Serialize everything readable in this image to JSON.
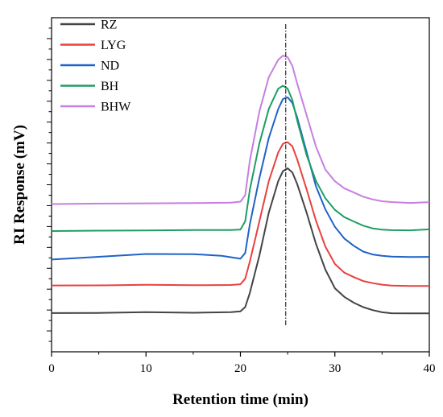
{
  "chart_data": {
    "type": "line",
    "title": "",
    "xlabel": "Retention time (min)",
    "ylabel": "RI Response (mV)",
    "xlim": [
      0,
      40
    ],
    "xticks": [
      0,
      10,
      20,
      30,
      40
    ],
    "ylim": [
      0,
      10
    ],
    "yticks_labeled": false,
    "grid": false,
    "legend": "top-left",
    "reference_line_x": 24.8,
    "series": [
      {
        "name": "RZ",
        "color": "#444444",
        "x": [
          0,
          5,
          10,
          15,
          19,
          20,
          20.5,
          21,
          22,
          23,
          24,
          24.5,
          25,
          25.5,
          26,
          27,
          28,
          29,
          30,
          31,
          32,
          33,
          34,
          35,
          36,
          38,
          40
        ],
        "y": [
          1.0,
          1.0,
          1.02,
          1.0,
          1.02,
          1.05,
          1.2,
          1.7,
          3.0,
          4.5,
          5.6,
          5.95,
          6.05,
          5.9,
          5.5,
          4.5,
          3.4,
          2.5,
          1.85,
          1.55,
          1.35,
          1.2,
          1.1,
          1.03,
          1.0,
          1.0,
          1.0
        ]
      },
      {
        "name": "LYG",
        "color": "#e8413f",
        "x": [
          0,
          5,
          10,
          15,
          19,
          20,
          20.5,
          21,
          22,
          23,
          24,
          24.5,
          25,
          25.5,
          26,
          27,
          28,
          29,
          30,
          31,
          32,
          33,
          34,
          35,
          36,
          38,
          40
        ],
        "y": [
          1.95,
          1.95,
          1.97,
          1.96,
          1.97,
          2.0,
          2.2,
          2.8,
          4.2,
          5.6,
          6.6,
          6.9,
          6.95,
          6.8,
          6.35,
          5.3,
          4.2,
          3.3,
          2.7,
          2.4,
          2.25,
          2.12,
          2.05,
          2.0,
          1.97,
          1.95,
          1.95
        ]
      },
      {
        "name": "ND",
        "color": "#1f63c6",
        "x": [
          0,
          5,
          10,
          15,
          18,
          20,
          20.5,
          21,
          22,
          23,
          24,
          24.5,
          25,
          25.5,
          26,
          27,
          28,
          29,
          30,
          31,
          32,
          33,
          34,
          35,
          36,
          38,
          40
        ],
        "y": [
          2.85,
          2.95,
          3.05,
          3.05,
          3.0,
          2.9,
          3.1,
          4.1,
          5.7,
          7.1,
          8.1,
          8.45,
          8.5,
          8.3,
          7.8,
          6.6,
          5.4,
          4.6,
          4.0,
          3.6,
          3.35,
          3.15,
          3.05,
          3.0,
          2.97,
          2.95,
          2.95
        ]
      },
      {
        "name": "BH",
        "color": "#1e9e62",
        "x": [
          0,
          5,
          10,
          15,
          19,
          20,
          20.5,
          21,
          22,
          23,
          24,
          24.5,
          25,
          25.5,
          26,
          27,
          28,
          29,
          30,
          31,
          32,
          33,
          34,
          35,
          36,
          38,
          40
        ],
        "y": [
          3.85,
          3.87,
          3.88,
          3.9,
          3.9,
          3.92,
          4.2,
          5.3,
          6.9,
          8.1,
          8.8,
          8.9,
          8.8,
          8.4,
          7.7,
          6.5,
          5.6,
          5.0,
          4.6,
          4.35,
          4.2,
          4.05,
          3.95,
          3.9,
          3.88,
          3.87,
          3.9
        ]
      },
      {
        "name": "BHW",
        "color": "#c77fe0",
        "x": [
          0,
          5,
          10,
          15,
          19,
          20,
          20.5,
          21,
          22,
          23,
          24,
          24.5,
          25,
          25.5,
          26,
          27,
          28,
          29,
          30,
          31,
          32,
          33,
          34,
          35,
          36,
          38,
          40
        ],
        "y": [
          4.8,
          4.82,
          4.83,
          4.84,
          4.85,
          4.88,
          5.1,
          6.3,
          8.0,
          9.2,
          9.8,
          9.95,
          9.9,
          9.6,
          9.0,
          7.9,
          6.8,
          6.0,
          5.6,
          5.35,
          5.2,
          5.05,
          4.95,
          4.88,
          4.85,
          4.82,
          4.85
        ]
      }
    ]
  }
}
